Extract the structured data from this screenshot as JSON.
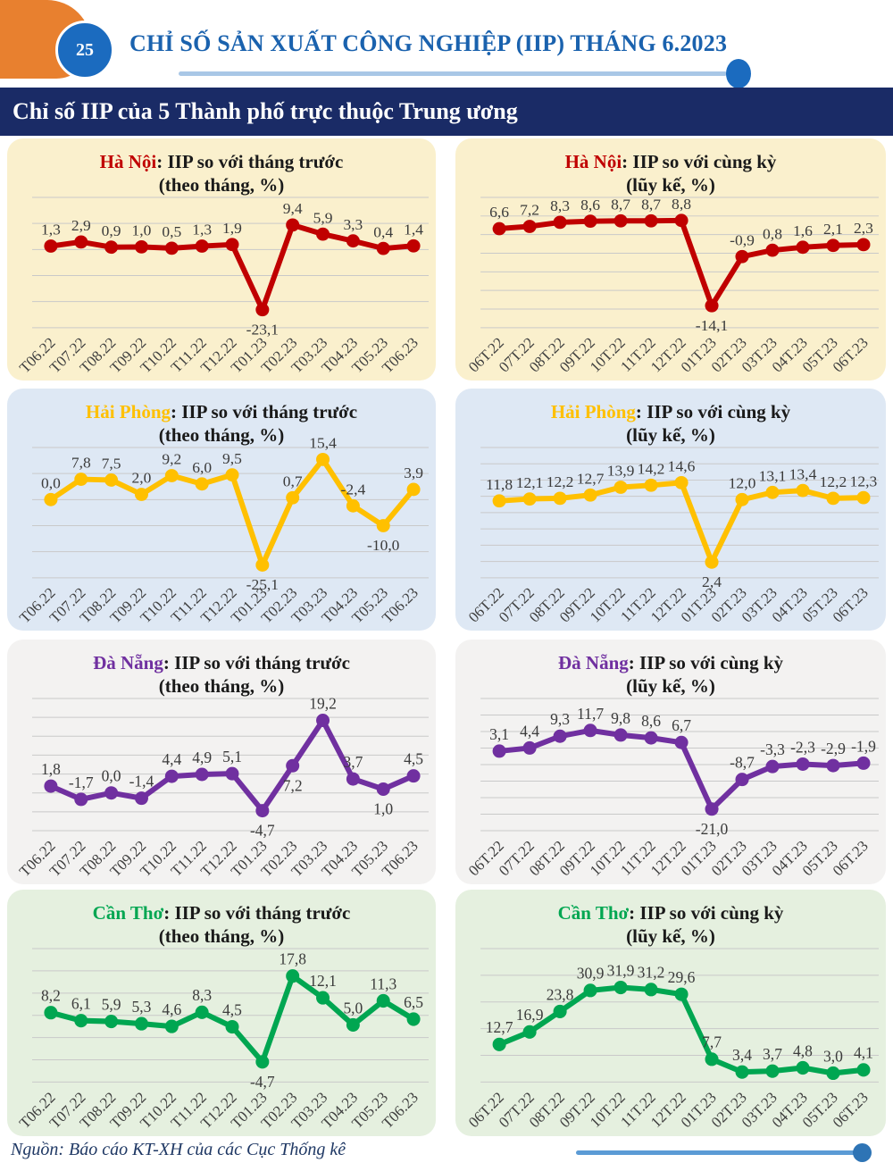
{
  "page": {
    "number": "25",
    "header_title": "CHỈ SỐ SẢN XUẤT CÔNG NGHIỆP (IIP) THÁNG 6.2023",
    "banner_title": "Chỉ số IIP của 5 Thành phố trực thuộc Trung ương",
    "source": "Nguồn: Báo cáo KT-XH của các Cục Thống kê"
  },
  "colors": {
    "header_title_blue": "#1A62AE",
    "banner_bg": "#1A2B66",
    "badge_blue": "#1B6BBF",
    "orange_decoration": "#E8802F",
    "header_rule": "#A9C7E6",
    "footer_rule": "#5B9BD5",
    "footer_dot": "#2E74B5",
    "source_text": "#1F3864",
    "hanoi_red": "#C00000",
    "haiphong_gold": "#FFC000",
    "danang_purple": "#7030A0",
    "cantho_green": "#00A651"
  },
  "chart_data": [
    {
      "type": "line",
      "city": "Hà Nội",
      "title_rest": ": IIP so với tháng trước",
      "subtitle": "(theo tháng, %)",
      "accent": "#C00000",
      "bg": "#FAF0CD",
      "categories": [
        "T06.22",
        "T07.22",
        "T08.22",
        "T09.22",
        "T10.22",
        "T11.22",
        "T12.22",
        "T01.23",
        "T02.23",
        "T03.23",
        "T04.23",
        "T05.23",
        "T06.23"
      ],
      "values": [
        1.3,
        2.9,
        0.9,
        1.0,
        0.5,
        1.3,
        1.9,
        -23.1,
        9.4,
        5.9,
        3.3,
        0.4,
        1.4
      ],
      "ylim": [
        -30,
        20
      ],
      "gridlines": 6,
      "label_below": [
        7
      ],
      "legend": "none"
    },
    {
      "type": "line",
      "city": "Hà Nội",
      "title_rest": ": IIP so với cùng kỳ",
      "subtitle": "(lũy kế, %)",
      "accent": "#C00000",
      "bg": "#FAF0CD",
      "categories": [
        "06T.22",
        "07T.22",
        "08T.22",
        "09T.22",
        "10T.22",
        "11T.22",
        "12T.22",
        "01T.23",
        "02T.23",
        "03T.23",
        "04T.23",
        "05T.23",
        "06T.23"
      ],
      "values": [
        6.6,
        7.2,
        8.3,
        8.6,
        8.7,
        8.7,
        8.8,
        -14.1,
        -0.9,
        0.8,
        1.6,
        2.1,
        2.3
      ],
      "ylim": [
        -20,
        15
      ],
      "gridlines": 8,
      "label_below": [
        7
      ],
      "legend": "none"
    },
    {
      "type": "line",
      "city": "Hải Phòng",
      "title_rest": ": IIP so với tháng trước",
      "subtitle": "(theo tháng, %)",
      "accent": "#FFC000",
      "bg": "#DEE8F4",
      "categories": [
        "T06.22",
        "T07.22",
        "T08.22",
        "T09.22",
        "T10.22",
        "T11.22",
        "T12.22",
        "T01.23",
        "T02.23",
        "T03.23",
        "T04.23",
        "T05.23",
        "T06.23"
      ],
      "values": [
        0.0,
        7.8,
        7.5,
        2.0,
        9.2,
        6.0,
        9.5,
        -25.1,
        0.7,
        15.4,
        -2.4,
        -10.0,
        3.9
      ],
      "ylim": [
        -30,
        20
      ],
      "gridlines": 6,
      "label_below": [
        7,
        11
      ],
      "legend": "none"
    },
    {
      "type": "line",
      "city": "Hải Phòng",
      "title_rest": ": IIP so với cùng kỳ",
      "subtitle": "(lũy kế, %)",
      "accent": "#FFC000",
      "bg": "#DEE8F4",
      "categories": [
        "06T.22",
        "07T.22",
        "08T.22",
        "09T.22",
        "10T.22",
        "11T.22",
        "12T.22",
        "01T.23",
        "02T.23",
        "03T.23",
        "04T.23",
        "05T.23",
        "06T.23"
      ],
      "values": [
        11.8,
        12.1,
        12.2,
        12.7,
        13.9,
        14.2,
        14.6,
        2.4,
        12.0,
        13.1,
        13.4,
        12.2,
        12.3
      ],
      "ylim": [
        0,
        20
      ],
      "gridlines": 9,
      "label_below": [
        7
      ],
      "legend": "none"
    },
    {
      "type": "line",
      "city": "Đà Nẵng",
      "title_rest": ": IIP so với tháng trước",
      "subtitle": "(theo tháng, %)",
      "accent": "#7030A0",
      "bg": "#F3F2F1",
      "categories": [
        "T06.22",
        "T07.22",
        "T08.22",
        "T09.22",
        "T10.22",
        "T11.22",
        "T12.22",
        "T01.23",
        "T02.23",
        "T03.23",
        "T04.23",
        "T05.23",
        "T06.23"
      ],
      "values": [
        1.8,
        -1.7,
        0.0,
        -1.4,
        4.4,
        4.9,
        5.1,
        -4.7,
        7.2,
        19.2,
        3.7,
        1.0,
        4.5
      ],
      "ylim": [
        -10,
        25
      ],
      "gridlines": 8,
      "label_below": [
        7,
        8,
        11
      ],
      "legend": "none"
    },
    {
      "type": "line",
      "city": "Đà Nẵng",
      "title_rest": ": IIP so với cùng kỳ",
      "subtitle": "(lũy kế, %)",
      "accent": "#7030A0",
      "bg": "#F3F2F1",
      "categories": [
        "06T.22",
        "07T.22",
        "08T.22",
        "09T.22",
        "10T.22",
        "11T.22",
        "12T.22",
        "01T.23",
        "02T.23",
        "03T.23",
        "04T.23",
        "05T.23",
        "06T.23"
      ],
      "values": [
        3.1,
        4.4,
        9.3,
        11.7,
        9.8,
        8.6,
        6.7,
        -21.0,
        -8.7,
        -3.3,
        -2.3,
        -2.9,
        -1.9
      ],
      "ylim": [
        -30,
        25
      ],
      "gridlines": 9,
      "label_below": [
        7
      ],
      "legend": "none"
    },
    {
      "type": "line",
      "city": "Cần Thơ",
      "title_rest": ": IIP so với tháng trước",
      "subtitle": "(theo tháng, %)",
      "accent": "#00A651",
      "bg": "#E5F0DF",
      "categories": [
        "T06.22",
        "T07.22",
        "T08.22",
        "T09.22",
        "T10.22",
        "T11.22",
        "T12.22",
        "T01.23",
        "T02.23",
        "T03.23",
        "T04.23",
        "T05.23",
        "T06.23"
      ],
      "values": [
        8.2,
        6.1,
        5.9,
        5.3,
        4.6,
        8.3,
        4.5,
        -4.7,
        17.8,
        12.1,
        5.0,
        11.3,
        6.5
      ],
      "ylim": [
        -10,
        25
      ],
      "gridlines": 7,
      "label_below": [
        7
      ],
      "legend": "none"
    },
    {
      "type": "line",
      "city": "Cần Thơ",
      "title_rest": ": IIP so với cùng kỳ",
      "subtitle": "(lũy kế, %)",
      "accent": "#00A651",
      "bg": "#E5F0DF",
      "categories": [
        "06T.22",
        "07T.22",
        "08T.22",
        "09T.22",
        "10T.22",
        "11T.22",
        "12T.22",
        "01T.23",
        "02T.23",
        "03T.23",
        "04T.23",
        "05T.23",
        "06T.23"
      ],
      "values": [
        12.7,
        16.9,
        23.8,
        30.9,
        31.9,
        31.2,
        29.6,
        7.7,
        3.4,
        3.7,
        4.8,
        3.0,
        4.1
      ],
      "ylim": [
        0,
        45
      ],
      "gridlines": 6,
      "label_below": [],
      "legend": "none"
    }
  ]
}
